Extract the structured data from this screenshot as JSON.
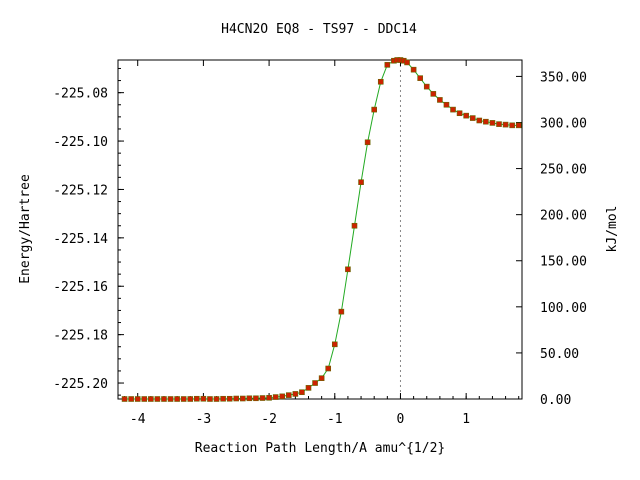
{
  "chart_data": {
    "type": "scatter",
    "title": "H4CN2O   EQ8 - TS97 - DDC14",
    "xlabel": "Reaction Path Length/A amu^{1/2}",
    "ylabel": "Energy/Hartree",
    "y2label": "kJ/mol",
    "xlim": [
      -4.3,
      1.85
    ],
    "ylim": [
      -225.2066,
      -225.0665
    ],
    "y2lim": [
      0.0,
      367.8
    ],
    "x_ticks": [
      -4,
      -3,
      -2,
      -1,
      0,
      1
    ],
    "x_tick_labels": [
      "-4",
      "-3",
      "-2",
      "-1",
      "0",
      "1"
    ],
    "y_ticks": [
      -225.2,
      -225.18,
      -225.16,
      -225.14,
      -225.12,
      -225.1,
      -225.08
    ],
    "y_tick_labels": [
      "-225.20",
      "-225.18",
      "-225.16",
      "-225.14",
      "-225.12",
      "-225.10",
      "-225.08"
    ],
    "y2_ticks": [
      0,
      50,
      100,
      150,
      200,
      250,
      300,
      350
    ],
    "y2_tick_labels": [
      "0.00",
      "50.00",
      "100.00",
      "150.00",
      "200.00",
      "250.00",
      "300.00",
      "350.00"
    ],
    "ts_marker_x": 0.0,
    "grid": false,
    "series": [
      {
        "line_color": "#22aa22",
        "marker_color": "#cc2200",
        "x": [
          -4.2,
          -4.1,
          -4.0,
          -3.9,
          -3.8,
          -3.7,
          -3.6,
          -3.5,
          -3.4,
          -3.3,
          -3.2,
          -3.1,
          -3.0,
          -2.9,
          -2.8,
          -2.7,
          -2.6,
          -2.5,
          -2.4,
          -2.3,
          -2.2,
          -2.1,
          -2.0,
          -1.9,
          -1.8,
          -1.7,
          -1.6,
          -1.5,
          -1.4,
          -1.3,
          -1.2,
          -1.1,
          -1.0,
          -0.9,
          -0.8,
          -0.7,
          -0.6,
          -0.5,
          -0.4,
          -0.3,
          -0.2,
          -0.1,
          -0.05,
          0.0,
          0.05,
          0.1,
          0.2,
          0.3,
          0.4,
          0.5,
          0.6,
          0.7,
          0.8,
          0.9,
          1.0,
          1.1,
          1.2,
          1.3,
          1.4,
          1.5,
          1.6,
          1.7,
          1.8
        ],
        "y": [
          -225.2066,
          -225.2066,
          -225.2066,
          -225.2066,
          -225.2066,
          -225.2066,
          -225.2066,
          -225.2066,
          -225.2066,
          -225.2066,
          -225.2066,
          -225.2065,
          -225.2065,
          -225.2066,
          -225.2066,
          -225.2065,
          -225.2065,
          -225.2064,
          -225.2064,
          -225.2063,
          -225.2063,
          -225.2062,
          -225.2061,
          -225.2058,
          -225.2055,
          -225.205,
          -225.2045,
          -225.2038,
          -225.202,
          -225.2,
          -225.198,
          -225.194,
          -225.184,
          -225.1705,
          -225.153,
          -225.135,
          -225.117,
          -225.1005,
          -225.087,
          -225.0755,
          -225.0685,
          -225.0668,
          -225.0665,
          -225.0665,
          -225.0668,
          -225.0675,
          -225.0705,
          -225.074,
          -225.0775,
          -225.0805,
          -225.083,
          -225.085,
          -225.087,
          -225.0885,
          -225.0895,
          -225.0905,
          -225.0915,
          -225.092,
          -225.0925,
          -225.093,
          -225.0932,
          -225.0935,
          -225.0935
        ]
      }
    ]
  }
}
